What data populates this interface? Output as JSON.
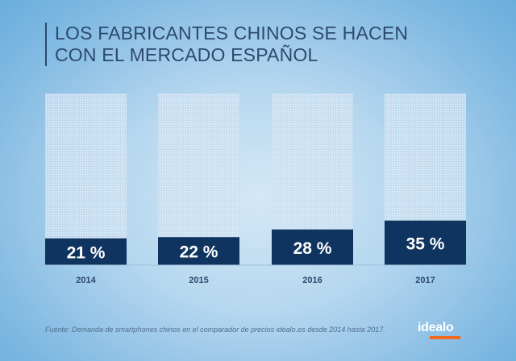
{
  "title": {
    "line1": "LOS FABRICANTES CHINOS SE HACEN",
    "line2": "CON EL MERCADO ESPAÑOL"
  },
  "chart_data": {
    "type": "bar",
    "categories": [
      "2014",
      "2015",
      "2016",
      "2017"
    ],
    "values": [
      21,
      22,
      28,
      35
    ],
    "labels": [
      "21 %",
      "22 %",
      "28 %",
      "35 %"
    ],
    "ylim": [
      0,
      100
    ],
    "unit": "%",
    "grid": false,
    "colors": {
      "bar": "#0f3460",
      "background_bar": "#cfe1f1",
      "label": "#ffffff",
      "tick": "#2c4a6e"
    }
  },
  "source": "Fuente: Demanda de smartphones chinos en el comparador de precios idealo.es desde 2014 hasta 2017.",
  "logo": {
    "text": "idealo",
    "accent": "#f26a21"
  }
}
